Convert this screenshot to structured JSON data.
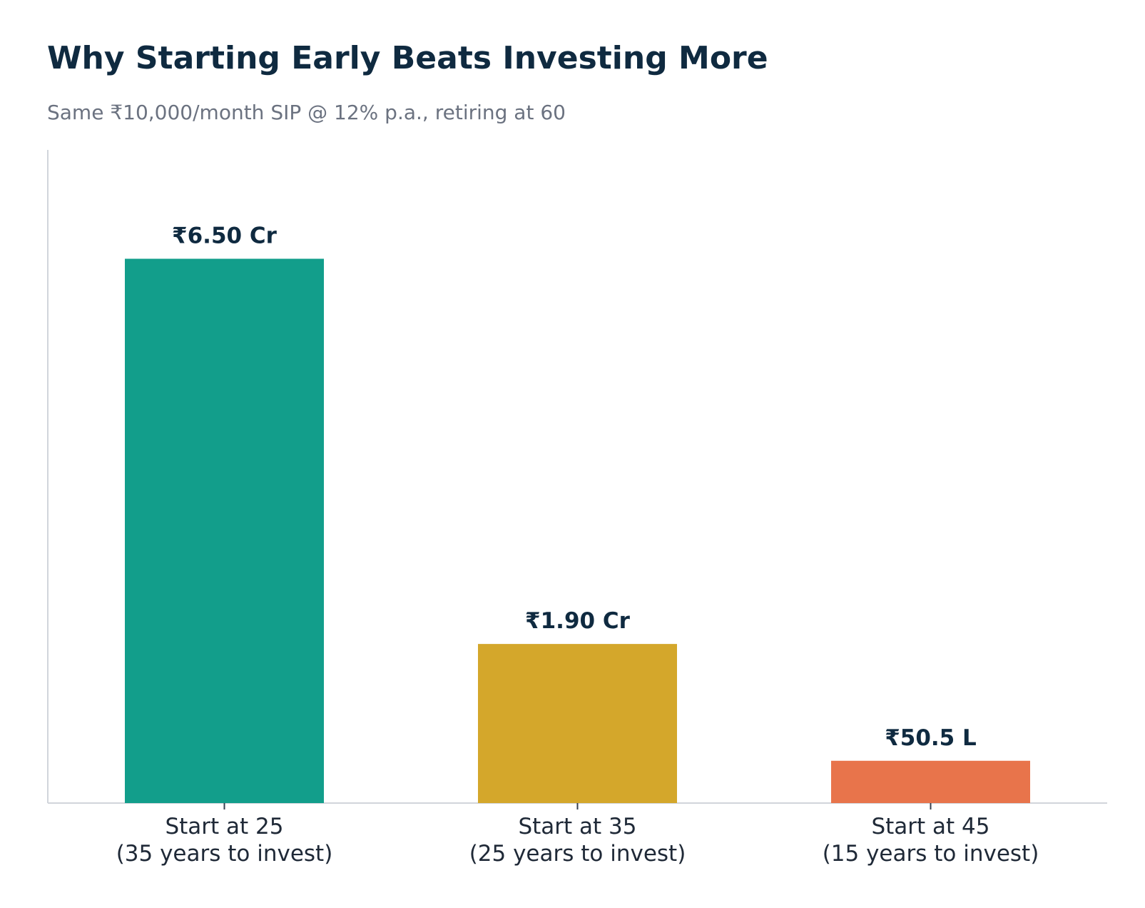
{
  "chart_data": {
    "type": "bar",
    "title": "Why Starting Early Beats Investing More",
    "subtitle": "Same ₹10,000/month SIP @ 12% p.a., retiring at 60",
    "xlabel": "",
    "ylabel": "",
    "categories": [
      [
        "Start at 25",
        "(35 years to invest)"
      ],
      [
        "Start at 35",
        "(25 years to invest)"
      ],
      [
        "Start at 45",
        "(15 years to invest)"
      ]
    ],
    "values": [
      6.5,
      1.9,
      0.505
    ],
    "unit": "Cr",
    "value_labels": [
      "₹6.50 Cr",
      "₹1.90 Cr",
      "₹50.5 L"
    ],
    "colors": [
      "#129e8b",
      "#d4a72b",
      "#e8744b"
    ],
    "label_color": "#0f2a40",
    "axis_color": "#d1d5db",
    "ylim": [
      0,
      7.8
    ],
    "grid": false,
    "legend": "none"
  }
}
